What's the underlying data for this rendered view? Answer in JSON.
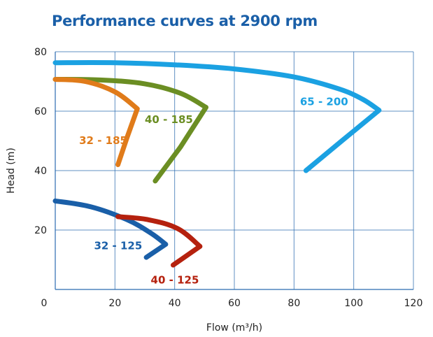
{
  "title": "Performance curves at 2900 rpm",
  "chart_data": {
    "type": "line",
    "title": "Performance curves at 2900 rpm",
    "xlabel": "Flow (m³/h)",
    "ylabel": "Head (m)",
    "xlim": [
      0,
      120
    ],
    "ylim": [
      0,
      80
    ],
    "xticks": [
      0,
      20,
      40,
      60,
      80,
      100,
      120
    ],
    "yticks": [
      20,
      40,
      60,
      80
    ],
    "grid": true,
    "legend": "none",
    "series": [
      {
        "name": "65 - 200",
        "color": "#1ba1e2",
        "label_x": 82,
        "label_y": 62,
        "x": [
          0,
          20,
          40,
          60,
          80,
          95,
          103,
          108.5,
          96,
          84
        ],
        "y": [
          76.3,
          76.3,
          75.6,
          74.2,
          71.5,
          67.5,
          64,
          60.3,
          50,
          40
        ]
      },
      {
        "name": "40 - 185",
        "color": "#6b8e23",
        "label_x": 30,
        "label_y": 56,
        "x": [
          0,
          15,
          30,
          42,
          50.5,
          42,
          33.5
        ],
        "y": [
          70.7,
          70.5,
          69.2,
          66,
          61.3,
          48,
          36.5
        ]
      },
      {
        "name": "32 - 185",
        "color": "#e07b1a",
        "label_x": 8,
        "label_y": 49,
        "x": [
          0,
          10,
          20,
          27.5,
          24,
          21
        ],
        "y": [
          70.7,
          70,
          66.5,
          60.8,
          51,
          42
        ]
      },
      {
        "name": "32 - 125",
        "color": "#1a5fa8",
        "label_x": 13,
        "label_y": 13.5,
        "x": [
          0,
          12,
          24,
          32,
          37,
          30.5
        ],
        "y": [
          29.8,
          27.8,
          23.5,
          19,
          15.2,
          10.8
        ]
      },
      {
        "name": "40 - 125",
        "color": "#b5210e",
        "label_x": 32,
        "label_y": 2,
        "x": [
          21,
          31,
          41,
          48.5,
          39.5
        ],
        "y": [
          24.5,
          23.5,
          20.5,
          14.5,
          8.2
        ]
      }
    ]
  }
}
